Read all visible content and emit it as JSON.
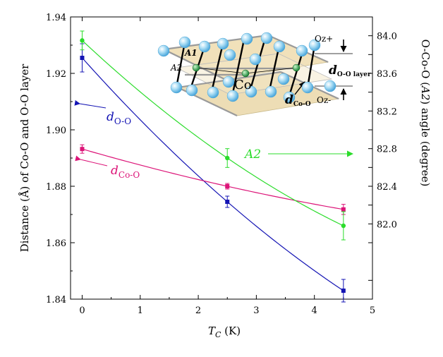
{
  "chart_data": {
    "type": "scatter",
    "title": "",
    "xlabel_main": "T",
    "xlabel_sub": "C",
    "xlabel_unit": " (K)",
    "ylabel_left": "Distance (Å) of Co-O and O-O layer",
    "ylabel_right": "O-Co-O (",
    "ylabel_right_sym": "A2",
    "ylabel_right_tail": ") angle (degree)",
    "xlim": [
      -0.2,
      5
    ],
    "ylim_left": [
      1.84,
      1.94
    ],
    "ylim_right": [
      81.2,
      84.2
    ],
    "x_ticks": [
      "0",
      "1",
      "2",
      "3",
      "4",
      "5"
    ],
    "y_ticks_left": [
      "1.84",
      "1.86",
      "1.88",
      "1.90",
      "1.92",
      "1.94"
    ],
    "y_ticks_right": [
      "82.0",
      "82.4",
      "82.8",
      "83.2",
      "83.6",
      "84.0"
    ],
    "series": [
      {
        "name": "d_O-O",
        "label_main": "d",
        "label_sub": "O-O",
        "axis": "left",
        "color": "#1414b4",
        "x": [
          0,
          2.5,
          4.5
        ],
        "y": [
          1.9255,
          1.8745,
          1.843
        ],
        "err": [
          0.005,
          0.002,
          0.004
        ]
      },
      {
        "name": "d_Co-O",
        "label_main": "d",
        "label_sub": "Co-O",
        "axis": "left",
        "color": "#dc1478",
        "x": [
          0,
          2.5,
          4.5
        ],
        "y": [
          1.8932,
          1.88,
          1.8718
        ],
        "err": [
          0.0015,
          0.001,
          0.0018
        ]
      },
      {
        "name": "A2",
        "label_main": "A2",
        "axis": "right",
        "color": "#2bdc2b",
        "x": [
          0,
          2.5,
          4.5
        ],
        "y": [
          83.95,
          82.7,
          81.98
        ],
        "err": [
          0.1,
          0.1,
          0.15
        ]
      }
    ]
  },
  "inset": {
    "labels": {
      "a1": "A1",
      "a2": "A2",
      "co": "Co",
      "oz_plus": "Oz+",
      "oz_minus": "Oz-",
      "d_layer_main": "d",
      "d_layer_sub": "O-O layer",
      "d_coo_main": "d",
      "d_coo_sub": "Co-O"
    }
  }
}
